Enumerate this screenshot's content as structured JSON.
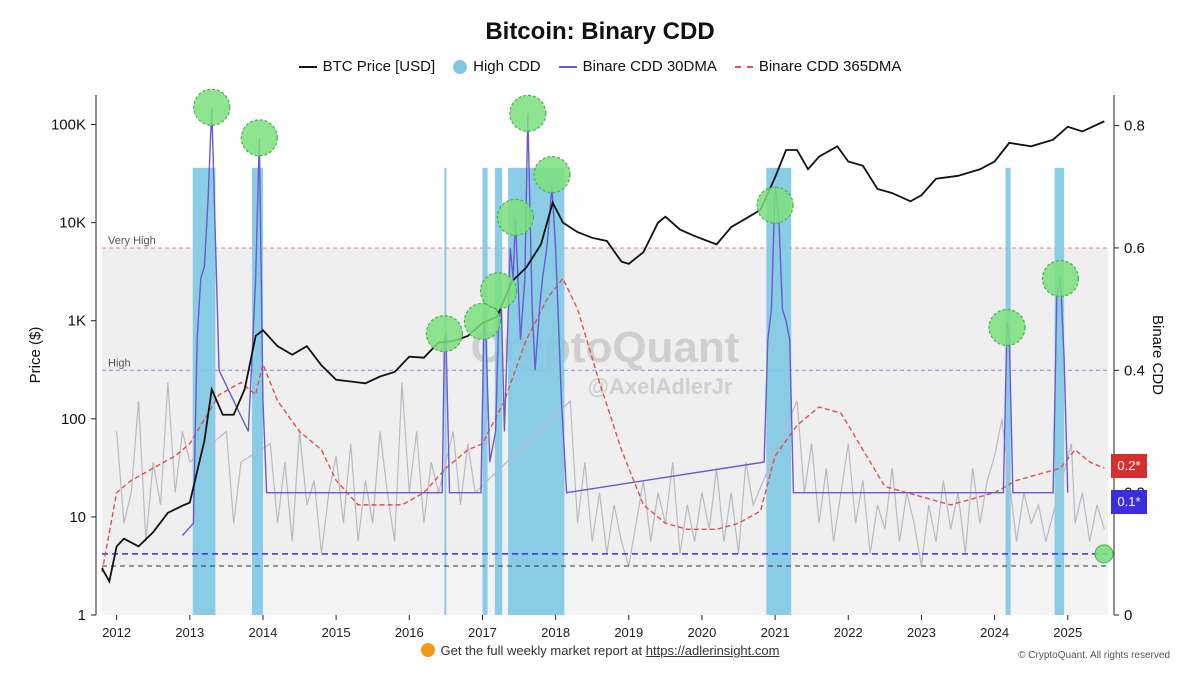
{
  "chart_data": {
    "type": "line",
    "title": "Bitcoin: Binary CDD",
    "legend": [
      "BTC Price [USD]",
      "High CDD",
      "Binare CDD 30DMA",
      "Binare CDD 365DMA"
    ],
    "legend_placement": "top-center",
    "ylabel_left": "Price ($)",
    "ylabel_right": "Binare CDD",
    "log_scale_left": true,
    "ylim_left": [
      1,
      200000
    ],
    "ylim_right": [
      0,
      0.85
    ],
    "yticks_left": [
      "1",
      "10",
      "100",
      "1K",
      "10K",
      "100K"
    ],
    "yticks_right": [
      "0",
      "0.2",
      "0.4",
      "0.6",
      "0.8"
    ],
    "xticks": [
      "2012",
      "2013",
      "2014",
      "2015",
      "2016",
      "2017",
      "2018",
      "2019",
      "2020",
      "2021",
      "2022",
      "2023",
      "2024",
      "2025"
    ],
    "xlim": [
      2011.8,
      2025.55
    ],
    "bands": [
      {
        "label": "Very High",
        "from": 0.4,
        "to": 0.6
      },
      {
        "label": "High",
        "from": 0.08,
        "to": 0.4
      }
    ],
    "thresholds": [
      {
        "label": "0.2*",
        "value": 0.2,
        "color": "#d32f2f"
      },
      {
        "label": "0.1*",
        "value": 0.1,
        "color": "#3b2ee0"
      }
    ],
    "high_cdd_periods": [
      [
        2013.04,
        2013.35
      ],
      [
        2013.85,
        2014.0
      ],
      [
        2016.48,
        2016.5
      ],
      [
        2017.0,
        2017.07
      ],
      [
        2017.17,
        2017.27
      ],
      [
        2017.35,
        2018.12
      ],
      [
        2020.88,
        2021.22
      ],
      [
        2024.15,
        2024.22
      ],
      [
        2024.82,
        2024.95
      ]
    ],
    "series": [
      {
        "name": "BTC Price [USD]",
        "x": [
          2011.8,
          2011.9,
          2012.0,
          2012.1,
          2012.3,
          2012.5,
          2012.7,
          2012.9,
          2013.0,
          2013.2,
          2013.3,
          2013.45,
          2013.6,
          2013.75,
          2013.9,
          2014.0,
          2014.2,
          2014.4,
          2014.6,
          2014.8,
          2015.0,
          2015.2,
          2015.4,
          2015.6,
          2015.8,
          2016.0,
          2016.2,
          2016.4,
          2016.6,
          2016.8,
          2017.0,
          2017.2,
          2017.4,
          2017.6,
          2017.8,
          2017.96,
          2018.1,
          2018.3,
          2018.5,
          2018.7,
          2018.9,
          2019.0,
          2019.2,
          2019.4,
          2019.5,
          2019.7,
          2019.9,
          2020.2,
          2020.4,
          2020.6,
          2020.8,
          2021.0,
          2021.15,
          2021.3,
          2021.45,
          2021.6,
          2021.85,
          2022.0,
          2022.2,
          2022.4,
          2022.6,
          2022.85,
          2023.0,
          2023.2,
          2023.5,
          2023.8,
          2024.0,
          2024.2,
          2024.5,
          2024.8,
          2025.0,
          2025.2,
          2025.5
        ],
        "y": [
          3,
          2.2,
          5,
          6,
          5,
          7,
          11,
          13,
          14,
          60,
          200,
          110,
          110,
          200,
          700,
          800,
          550,
          450,
          550,
          350,
          250,
          240,
          230,
          270,
          300,
          430,
          420,
          600,
          620,
          700,
          950,
          1100,
          2500,
          3500,
          6000,
          16000,
          10000,
          8000,
          7000,
          6500,
          4000,
          3800,
          5000,
          10000,
          11500,
          8500,
          7300,
          6000,
          9000,
          11000,
          13500,
          29000,
          55000,
          55000,
          35000,
          47000,
          60000,
          42000,
          38000,
          22000,
          20000,
          16500,
          19000,
          28000,
          30000,
          35000,
          42000,
          65000,
          60000,
          70000,
          95000,
          85000,
          108000
        ]
      },
      {
        "name": "Binare CDD 30DMA",
        "x": [
          2012.9,
          2013.05,
          2013.1,
          2013.15,
          2013.2,
          2013.25,
          2013.3,
          2013.4,
          2013.8,
          2013.85,
          2013.9,
          2013.95,
          2014.0,
          2014.05,
          2016.45,
          2016.48,
          2016.5,
          2016.55,
          2016.98,
          2017.02,
          2017.05,
          2017.1,
          2017.18,
          2017.22,
          2017.26,
          2017.3,
          2017.38,
          2017.42,
          2017.45,
          2017.52,
          2017.58,
          2017.62,
          2017.68,
          2017.72,
          2017.78,
          2017.82,
          2017.88,
          2017.95,
          2018.0,
          2018.08,
          2018.15,
          2020.85,
          2020.9,
          2020.95,
          2021.0,
          2021.05,
          2021.1,
          2021.15,
          2021.2,
          2021.25,
          2024.12,
          2024.17,
          2024.2,
          2024.25,
          2024.8,
          2024.85,
          2024.9,
          2024.95,
          2025.0
        ],
        "y": [
          0.13,
          0.15,
          0.45,
          0.55,
          0.57,
          0.68,
          0.83,
          0.4,
          0.3,
          0.42,
          0.55,
          0.78,
          0.35,
          0.2,
          0.2,
          0.45,
          0.46,
          0.2,
          0.2,
          0.48,
          0.45,
          0.25,
          0.3,
          0.48,
          0.5,
          0.3,
          0.6,
          0.55,
          0.65,
          0.45,
          0.55,
          0.82,
          0.5,
          0.4,
          0.5,
          0.55,
          0.6,
          0.7,
          0.6,
          0.35,
          0.2,
          0.25,
          0.45,
          0.5,
          0.7,
          0.65,
          0.5,
          0.48,
          0.45,
          0.2,
          0.2,
          0.48,
          0.46,
          0.2,
          0.2,
          0.52,
          0.55,
          0.42,
          0.2
        ]
      },
      {
        "name": "Binare CDD 365DMA",
        "x": [
          2011.8,
          2012.0,
          2012.2,
          2012.5,
          2012.8,
          2013.0,
          2013.2,
          2013.4,
          2013.7,
          2013.9,
          2014.0,
          2014.2,
          2014.5,
          2014.8,
          2015.0,
          2015.3,
          2015.6,
          2015.9,
          2016.2,
          2016.5,
          2016.8,
          2017.0,
          2017.3,
          2017.6,
          2017.9,
          2018.1,
          2018.3,
          2018.6,
          2018.9,
          2019.2,
          2019.5,
          2019.8,
          2020.2,
          2020.5,
          2020.8,
          2021.0,
          2021.3,
          2021.6,
          2021.9,
          2022.2,
          2022.5,
          2022.8,
          2023.1,
          2023.4,
          2023.7,
          2024.0,
          2024.3,
          2024.6,
          2024.9,
          2025.1,
          2025.3,
          2025.5
        ],
        "y": [
          0.07,
          0.2,
          0.22,
          0.24,
          0.26,
          0.28,
          0.32,
          0.36,
          0.38,
          0.36,
          0.41,
          0.35,
          0.3,
          0.27,
          0.22,
          0.18,
          0.18,
          0.18,
          0.2,
          0.24,
          0.27,
          0.28,
          0.35,
          0.45,
          0.52,
          0.55,
          0.5,
          0.38,
          0.27,
          0.18,
          0.15,
          0.14,
          0.14,
          0.15,
          0.17,
          0.26,
          0.31,
          0.34,
          0.33,
          0.27,
          0.21,
          0.2,
          0.19,
          0.18,
          0.19,
          0.2,
          0.22,
          0.23,
          0.24,
          0.27,
          0.25,
          0.24
        ]
      },
      {
        "name": "Binary CDD daily",
        "x": [
          2012.0,
          2012.1,
          2012.2,
          2012.3,
          2012.4,
          2012.5,
          2012.6,
          2012.7,
          2012.8,
          2012.9,
          2013.0,
          2013.5,
          2013.6,
          2013.7,
          2014.1,
          2014.2,
          2014.3,
          2014.4,
          2014.5,
          2014.6,
          2014.7,
          2014.8,
          2014.9,
          2015.0,
          2015.1,
          2015.2,
          2015.3,
          2015.4,
          2015.5,
          2015.6,
          2015.7,
          2015.8,
          2015.9,
          2016.0,
          2016.1,
          2016.2,
          2016.3,
          2016.4,
          2016.6,
          2016.7,
          2016.8,
          2016.9,
          2018.2,
          2018.3,
          2018.4,
          2018.5,
          2018.6,
          2018.7,
          2018.8,
          2018.9,
          2019.0,
          2019.1,
          2019.2,
          2019.3,
          2019.4,
          2019.5,
          2019.6,
          2019.7,
          2019.8,
          2019.9,
          2020.0,
          2020.1,
          2020.2,
          2020.3,
          2020.4,
          2020.5,
          2020.6,
          2020.7,
          2021.3,
          2021.4,
          2021.5,
          2021.6,
          2021.7,
          2021.8,
          2021.9,
          2022.0,
          2022.1,
          2022.2,
          2022.3,
          2022.4,
          2022.5,
          2022.6,
          2022.7,
          2022.8,
          2022.9,
          2023.0,
          2023.1,
          2023.2,
          2023.3,
          2023.4,
          2023.5,
          2023.6,
          2023.7,
          2023.8,
          2023.9,
          2024.0,
          2024.1,
          2024.3,
          2024.4,
          2024.5,
          2024.6,
          2024.7,
          2025.05,
          2025.1,
          2025.2,
          2025.3,
          2025.4,
          2025.5
        ],
        "y": [
          0.3,
          0.15,
          0.2,
          0.35,
          0.12,
          0.25,
          0.18,
          0.38,
          0.2,
          0.3,
          0.25,
          0.3,
          0.15,
          0.25,
          0.28,
          0.15,
          0.25,
          0.12,
          0.3,
          0.18,
          0.22,
          0.1,
          0.2,
          0.26,
          0.15,
          0.28,
          0.12,
          0.22,
          0.15,
          0.3,
          0.2,
          0.12,
          0.38,
          0.2,
          0.3,
          0.15,
          0.25,
          0.2,
          0.3,
          0.18,
          0.28,
          0.2,
          0.35,
          0.15,
          0.25,
          0.12,
          0.2,
          0.1,
          0.18,
          0.12,
          0.08,
          0.15,
          0.22,
          0.12,
          0.2,
          0.15,
          0.25,
          0.1,
          0.18,
          0.12,
          0.2,
          0.14,
          0.24,
          0.12,
          0.2,
          0.1,
          0.25,
          0.18,
          0.35,
          0.2,
          0.28,
          0.15,
          0.24,
          0.12,
          0.2,
          0.28,
          0.15,
          0.22,
          0.1,
          0.18,
          0.14,
          0.24,
          0.12,
          0.2,
          0.15,
          0.08,
          0.18,
          0.12,
          0.22,
          0.14,
          0.2,
          0.1,
          0.24,
          0.15,
          0.22,
          0.26,
          0.32,
          0.12,
          0.2,
          0.15,
          0.18,
          0.12,
          0.28,
          0.15,
          0.2,
          0.12,
          0.18,
          0.14
        ]
      }
    ]
  },
  "watermark": {
    "brand": "CryptoQuant",
    "handle": "@AxelAdlerJr"
  },
  "footer": {
    "text": "Get the full weekly market report at",
    "link": "https://adlerinsight.com"
  },
  "copyright": "© CryptoQuant. All rights reserved",
  "colors": {
    "price": "#111111",
    "high_cdd": "#7ec8e3",
    "cdd30": "#6a5acd",
    "cdd365": "#e05050",
    "daily": "#b9b9c4",
    "highlight": "#7be07b",
    "band": "#efefef"
  }
}
